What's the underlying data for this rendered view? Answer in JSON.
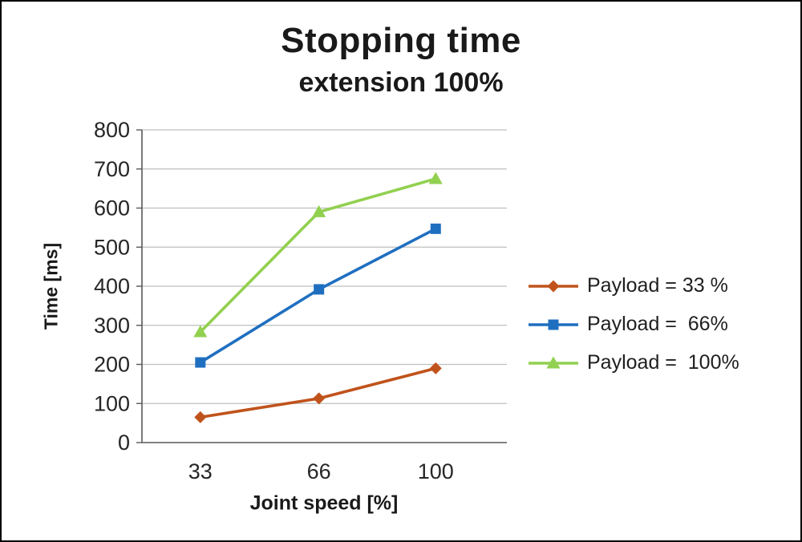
{
  "title": "Stopping time",
  "subtitle": "extension 100%",
  "chart_data": {
    "type": "line",
    "title": "Stopping time",
    "subtitle": "extension 100%",
    "xlabel": "Joint speed [%]",
    "ylabel": "Time [ms]",
    "x": [
      33,
      66,
      100
    ],
    "yticks": [
      0,
      100,
      200,
      300,
      400,
      500,
      600,
      700,
      800
    ],
    "ylim": [
      0,
      800
    ],
    "grid": true,
    "legend_position": "right",
    "series": [
      {
        "name": "Payload = 33 %",
        "color": "#c0531b",
        "marker": "diamond",
        "values": [
          65,
          113,
          190
        ]
      },
      {
        "name": "Payload =  66%",
        "color": "#1f6fc0",
        "marker": "square",
        "values": [
          205,
          392,
          547
        ]
      },
      {
        "name": "Payload =  100%",
        "color": "#92d050",
        "marker": "triangle",
        "values": [
          283,
          590,
          675
        ]
      }
    ],
    "axis_color": "#595959",
    "gridline_color": "#bfbfbf"
  }
}
